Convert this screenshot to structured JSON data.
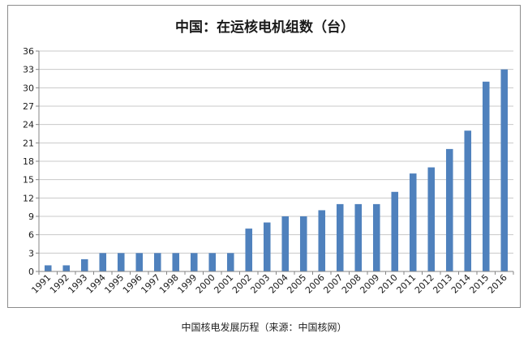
{
  "caption": "中国核电发展历程（来源：中国核网）",
  "colors": {
    "bar": "#4f81bd",
    "grid": "#c8c8c8",
    "axis": "#868686",
    "text": "#1a1a1a"
  },
  "chart_data": {
    "type": "bar",
    "title": "中国：在运核电机组数（台）",
    "xlabel": "",
    "ylabel": "",
    "categories": [
      "1991",
      "1992",
      "1993",
      "1994",
      "1995",
      "1996",
      "1997",
      "1998",
      "1999",
      "2000",
      "2001",
      "2002",
      "2003",
      "2004",
      "2005",
      "2006",
      "2007",
      "2008",
      "2009",
      "2010",
      "2011",
      "2012",
      "2013",
      "2014",
      "2015",
      "2016"
    ],
    "values": [
      1,
      1,
      2,
      3,
      3,
      3,
      3,
      3,
      3,
      3,
      3,
      7,
      8,
      9,
      9,
      10,
      11,
      11,
      11,
      13,
      16,
      17,
      20,
      23,
      31,
      33
    ],
    "ylim": [
      0,
      36
    ],
    "yticks": [
      0,
      3,
      6,
      9,
      12,
      15,
      18,
      21,
      24,
      27,
      30,
      33,
      36
    ],
    "grid": true,
    "legend": "none"
  }
}
